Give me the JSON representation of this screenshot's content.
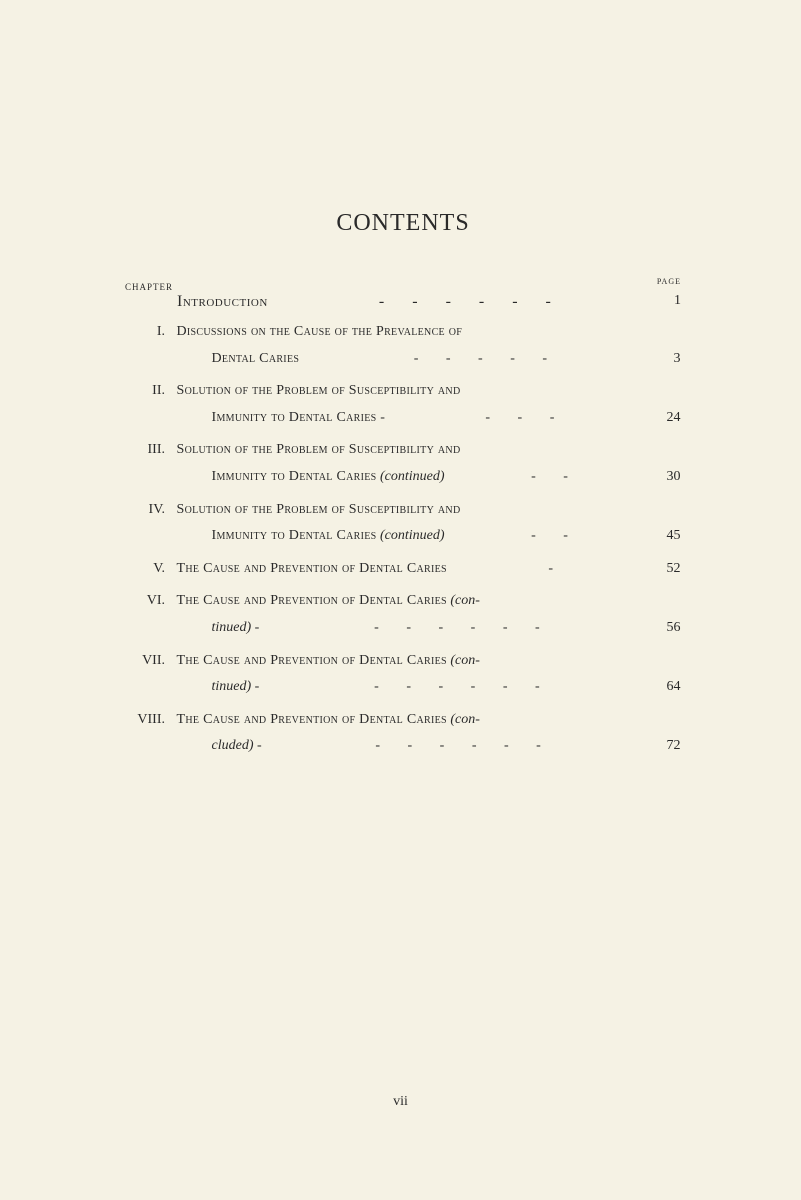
{
  "title": "CONTENTS",
  "chapterLabel": "CHAPTER",
  "pageLabel": "PAGE",
  "intro": {
    "label": "Introduction",
    "page": "1"
  },
  "entries": [
    {
      "roman": "I.",
      "line1": "Discussions on the Cause of the Prevalence of",
      "line2": "Dental Caries",
      "page": "3"
    },
    {
      "roman": "II.",
      "line1": "Solution of the Problem of Susceptibility and",
      "line2": "Immunity to Dental Caries -",
      "page": "24"
    },
    {
      "roman": "III.",
      "line1": "Solution of the Problem of Susceptibility and",
      "line2": "Immunity to Dental Caries",
      "suffix2": "(continued)",
      "page": "30"
    },
    {
      "roman": "IV.",
      "line1": "Solution of the Problem of Susceptibility and",
      "line2": "Immunity to Dental Caries",
      "suffix2": "(continued)",
      "page": "45"
    },
    {
      "roman": "V.",
      "line1": "The Cause and Prevention of Dental Caries",
      "page": "52"
    },
    {
      "roman": "VI.",
      "line1": "The Cause and Prevention of Dental Caries",
      "suffix1": "(con-",
      "line2italic": "tinued)",
      "line2dash": " -",
      "page": "56"
    },
    {
      "roman": "VII.",
      "line1": "The Cause and Prevention of Dental Caries",
      "suffix1": "(con-",
      "line2italic": "tinued)",
      "line2dash": " -",
      "page": "64"
    },
    {
      "roman": "VIII.",
      "line1": "The Cause and Prevention of Dental Caries",
      "suffix1": "(con-",
      "line2italic": "cluded)",
      "line2dash": " -",
      "page": "72"
    }
  ],
  "footer": "vii"
}
